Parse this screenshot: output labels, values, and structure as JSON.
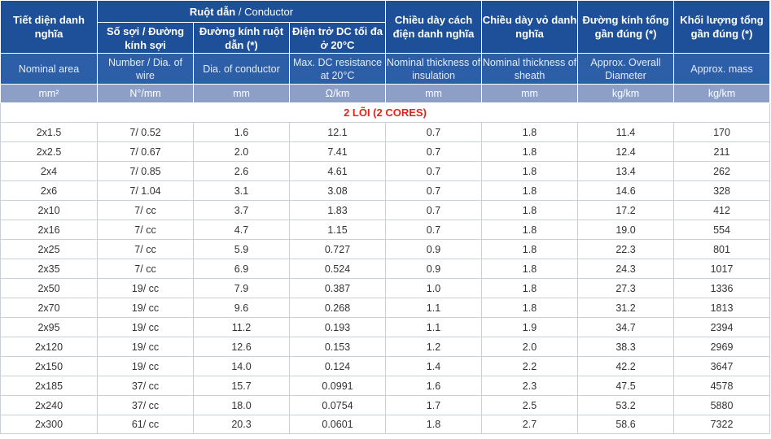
{
  "header": {
    "nominal_area_vi": "Tiết diện danh nghĩa",
    "conductor_vi": "Ruột dẫn",
    "conductor_en": " / Conductor",
    "insulation_vi": "Chiều dày cách điện danh nghĩa",
    "sheath_vi": "Chiều dày vỏ danh nghĩa",
    "overall_dia_vi": "Đường kính tổng gần đúng (*)",
    "mass_vi": "Khối lượng tổng gần đúng (*)",
    "number_wires_vi": "Số sợi / Đường kính sợi",
    "dia_conductor_vi": "Đường kính ruột dẫn (*)",
    "max_dc_vi": "Điện trở DC tối đa ở 20°C"
  },
  "english_row": {
    "nominal_area": "Nominal area",
    "number_wires": "Number / Dia. of wire",
    "dia_conductor": "Dia. of conductor",
    "max_dc": "Max. DC resistance at 20°C",
    "insulation": "Nominal thickness of insulation",
    "sheath": "Nominal thickness of sheath",
    "overall_dia": "Approx. Overall Diameter",
    "mass": "Approx. mass"
  },
  "units": {
    "nominal_area": "mm²",
    "number_wires": "N°/mm",
    "dia_conductor": "mm",
    "max_dc": "Ω/km",
    "insulation": "mm",
    "sheath": "mm",
    "overall_dia": "kg/km",
    "mass": "kg/km"
  },
  "section_title": "2 LÕI (2 CORES)",
  "rows": [
    [
      "2x1.5",
      "7/ 0.52",
      "1.6",
      "12.1",
      "0.7",
      "1.8",
      "11.4",
      "170"
    ],
    [
      "2x2.5",
      "7/ 0.67",
      "2.0",
      "7.41",
      "0.7",
      "1.8",
      "12.4",
      "211"
    ],
    [
      "2x4",
      "7/ 0.85",
      "2.6",
      "4.61",
      "0.7",
      "1.8",
      "13.4",
      "262"
    ],
    [
      "2x6",
      "7/ 1.04",
      "3.1",
      "3.08",
      "0.7",
      "1.8",
      "14.6",
      "328"
    ],
    [
      "2x10",
      "7/ cc",
      "3.7",
      "1.83",
      "0.7",
      "1.8",
      "17.2",
      "412"
    ],
    [
      "2x16",
      "7/ cc",
      "4.7",
      "1.15",
      "0.7",
      "1.8",
      "19.0",
      "554"
    ],
    [
      "2x25",
      "7/ cc",
      "5.9",
      "0.727",
      "0.9",
      "1.8",
      "22.3",
      "801"
    ],
    [
      "2x35",
      "7/ cc",
      "6.9",
      "0.524",
      "0.9",
      "1.8",
      "24.3",
      "1017"
    ],
    [
      "2x50",
      "19/ cc",
      "7.9",
      "0.387",
      "1.0",
      "1.8",
      "27.3",
      "1336"
    ],
    [
      "2x70",
      "19/ cc",
      "9.6",
      "0.268",
      "1.1",
      "1.8",
      "31.2",
      "1813"
    ],
    [
      "2x95",
      "19/ cc",
      "11.2",
      "0.193",
      "1.1",
      "1.9",
      "34.7",
      "2394"
    ],
    [
      "2x120",
      "19/ cc",
      "12.6",
      "0.153",
      "1.2",
      "2.0",
      "38.3",
      "2969"
    ],
    [
      "2x150",
      "19/ cc",
      "14.0",
      "0.124",
      "1.4",
      "2.2",
      "42.2",
      "3647"
    ],
    [
      "2x185",
      "37/ cc",
      "15.7",
      "0.0991",
      "1.6",
      "2.3",
      "47.5",
      "4578"
    ],
    [
      "2x240",
      "37/ cc",
      "18.0",
      "0.0754",
      "1.7",
      "2.5",
      "53.2",
      "5880"
    ],
    [
      "2x300",
      "61/ cc",
      "20.3",
      "0.0601",
      "1.8",
      "2.7",
      "58.6",
      "7322"
    ]
  ]
}
